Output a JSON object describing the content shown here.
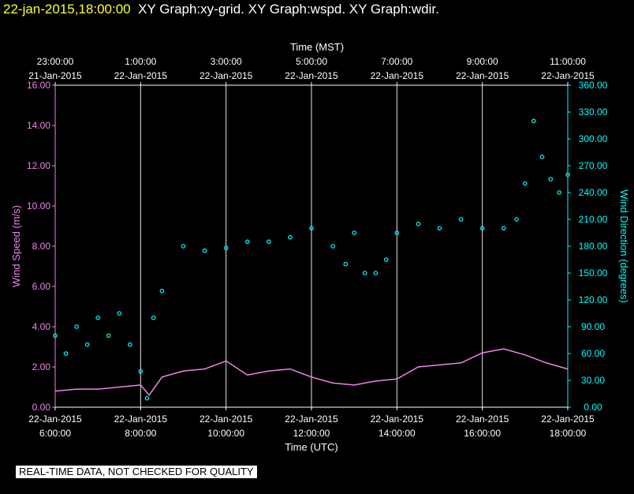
{
  "header": {
    "timestamp": "22-jan-2015,18:00:00",
    "graphs": "XY Graph:xy-grid.  XY Graph:wspd.  XY Graph:wdir."
  },
  "notice": "REAL-TIME DATA, NOT CHECKED FOR QUALITY",
  "colors": {
    "wspd": "#ee82ee",
    "wdir": "#00ffff",
    "axis": "#ffffff",
    "timestamp": "#ffff33"
  },
  "chart_data": {
    "type": "line",
    "top_axis": {
      "title": "Time (MST)",
      "ticks": [
        {
          "time": "23:00:00",
          "date": "21-Jan-2015"
        },
        {
          "time": "1:00:00",
          "date": "22-Jan-2015"
        },
        {
          "time": "3:00:00",
          "date": "22-Jan-2015"
        },
        {
          "time": "5:00:00",
          "date": "22-Jan-2015"
        },
        {
          "time": "7:00:00",
          "date": "22-Jan-2015"
        },
        {
          "time": "9:00:00",
          "date": "22-Jan-2015"
        },
        {
          "time": "11:00:00",
          "date": "22-Jan-2015"
        }
      ]
    },
    "bottom_axis": {
      "title": "Time (UTC)",
      "ticks": [
        {
          "date": "22-Jan-2015",
          "time": "6:00:00"
        },
        {
          "date": "22-Jan-2015",
          "time": "8:00:00"
        },
        {
          "date": "22-Jan-2015",
          "time": "10:00:00"
        },
        {
          "date": "22-Jan-2015",
          "time": "12:00:00"
        },
        {
          "date": "22-Jan-2015",
          "time": "14:00:00"
        },
        {
          "date": "22-Jan-2015",
          "time": "16:00:00"
        },
        {
          "date": "22-Jan-2015",
          "time": "18:00:00"
        }
      ],
      "range_hours_utc": [
        6,
        18
      ]
    },
    "left_axis": {
      "title": "Wind Speed (m/s)",
      "ylim": [
        0,
        16
      ],
      "ticks": [
        "0.00",
        "2.00",
        "4.00",
        "6.00",
        "8.00",
        "10.00",
        "12.00",
        "14.00",
        "16.00"
      ]
    },
    "right_axis": {
      "title": "Wind Direction (degrees)",
      "ylim": [
        0,
        360
      ],
      "ticks": [
        "0.00",
        "30.00",
        "60.00",
        "90.00",
        "120.00",
        "150.00",
        "180.00",
        "210.00",
        "240.00",
        "270.00",
        "300.00",
        "330.00",
        "360.00"
      ]
    },
    "grid": "vertical",
    "series": [
      {
        "axis": "left",
        "style": "line",
        "x": [
          6.0,
          6.5,
          7.0,
          7.5,
          8.0,
          8.2,
          8.5,
          9.0,
          9.5,
          10.0,
          10.5,
          11.0,
          11.5,
          12.0,
          12.5,
          13.0,
          13.5,
          14.0,
          14.5,
          15.0,
          15.5,
          16.0,
          16.5,
          17.0,
          17.5,
          18.0
        ],
        "values": [
          0.8,
          0.9,
          0.9,
          1.0,
          1.1,
          0.6,
          1.5,
          1.8,
          1.9,
          2.3,
          1.6,
          1.8,
          1.9,
          1.5,
          1.2,
          1.1,
          1.3,
          1.4,
          2.0,
          2.1,
          2.2,
          2.7,
          2.9,
          2.6,
          2.2,
          1.9
        ]
      },
      {
        "axis": "right",
        "style": "points",
        "x": [
          6.0,
          6.25,
          6.5,
          6.75,
          7.0,
          7.25,
          7.5,
          7.75,
          8.0,
          8.15,
          8.3,
          8.5,
          9.0,
          9.5,
          10.0,
          10.5,
          11.0,
          11.5,
          12.0,
          12.5,
          12.8,
          13.0,
          13.25,
          13.5,
          13.75,
          14.0,
          14.5,
          15.0,
          15.5,
          16.0,
          16.5,
          16.8,
          17.0,
          17.2,
          17.4,
          17.6,
          17.8,
          18.0
        ],
        "values": [
          80,
          60,
          90,
          70,
          100,
          80,
          105,
          70,
          40,
          10,
          100,
          130,
          180,
          175,
          178,
          185,
          185,
          190,
          200,
          180,
          160,
          195,
          150,
          150,
          165,
          195,
          205,
          200,
          210,
          200,
          200,
          210,
          250,
          320,
          280,
          255,
          240,
          260
        ]
      }
    ]
  }
}
